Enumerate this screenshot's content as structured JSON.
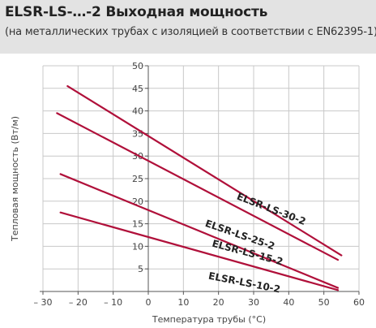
{
  "header": {
    "title": "ELSR-LS-…-2 Выходная мощность",
    "subtitle": "(на металлических трубах с изоляцией в соответствии с EN62395-1)"
  },
  "chart_data": {
    "type": "line",
    "xlabel": "Температура трубы (°C)",
    "ylabel": "Тепловая мощность (Вт/м)",
    "xlim": [
      -30,
      60
    ],
    "ylim": [
      0,
      50
    ],
    "x_ticks": [
      -30,
      -20,
      -10,
      0,
      10,
      20,
      30,
      40,
      50,
      60
    ],
    "x_tick_labels": [
      "– 30",
      "– 20",
      "– 10",
      "0",
      "10",
      "20",
      "30",
      "40",
      "50",
      "60"
    ],
    "y_ticks": [
      5,
      10,
      15,
      20,
      25,
      30,
      35,
      40,
      45,
      50
    ],
    "y_tick_labels": [
      "5",
      "10",
      "15",
      "20",
      "25",
      "30",
      "35",
      "40",
      "45",
      "50"
    ],
    "grid": true,
    "line_color": "#b0103a",
    "series": [
      {
        "name": "ELSR-LS-30-2",
        "x": [
          -23,
          55
        ],
        "y": [
          45.5,
          8.0
        ],
        "label_x": 25,
        "label_y": 20.5,
        "label_angle": 21
      },
      {
        "name": "ELSR-LS-25-2",
        "x": [
          -26,
          54
        ],
        "y": [
          39.5,
          7.0
        ],
        "label_x": 16,
        "label_y": 14.5,
        "label_angle": 19
      },
      {
        "name": "ELSR-LS-15-2",
        "x": [
          -25,
          54
        ],
        "y": [
          26.0,
          0.8
        ],
        "label_x": 18,
        "label_y": 10.0,
        "label_angle": 15
      },
      {
        "name": "ELSR-LS-10-2",
        "x": [
          -25,
          54
        ],
        "y": [
          17.5,
          0.3
        ],
        "label_x": 17,
        "label_y": 2.8,
        "label_angle": 11
      }
    ]
  }
}
